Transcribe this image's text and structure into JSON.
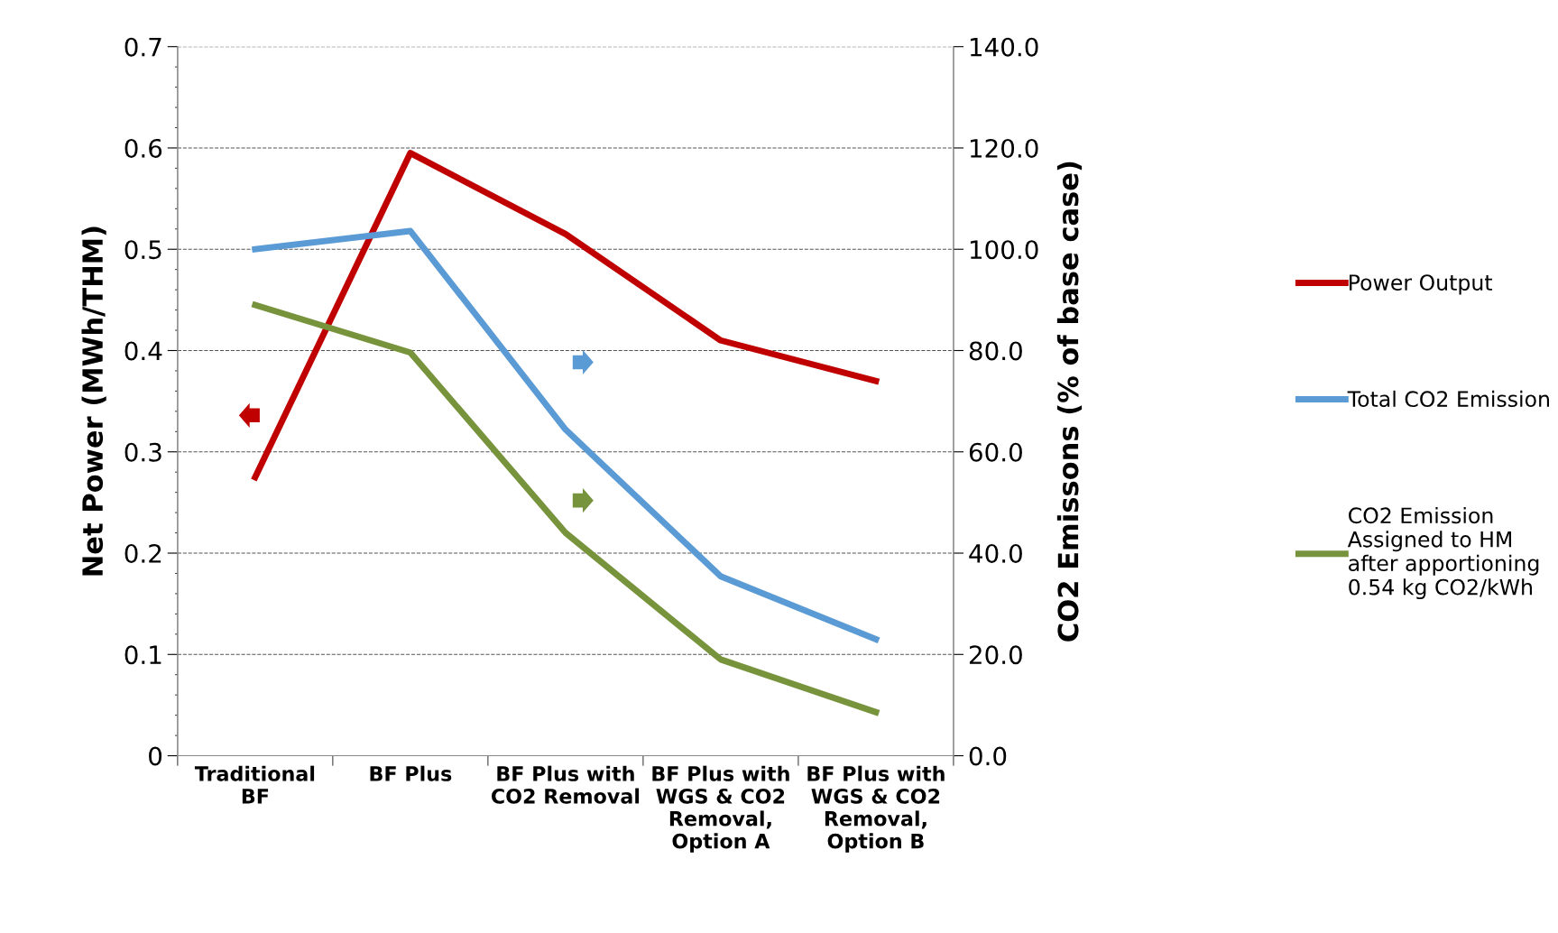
{
  "chart_data": {
    "type": "line",
    "categories": [
      "Traditional\nBF",
      "BF Plus",
      "BF Plus with\nCO2 Removal",
      "BF Plus with\nWGS & CO2\nRemoval,\nOption A",
      "BF Plus with\nWGS & CO2\nRemoval,\nOption B"
    ],
    "ylabel": "Net Power (MWh/THM)",
    "y2label": "CO2 Emissons (% of base case)",
    "ylim": [
      0,
      0.7
    ],
    "yticks": [
      0,
      0.1,
      0.2,
      0.3,
      0.4,
      0.5,
      0.6,
      0.7
    ],
    "y2lim": [
      0,
      140
    ],
    "y2ticks": [
      {
        "value": 0,
        "label": "0.0"
      },
      {
        "value": 20,
        "label": "20.0"
      },
      {
        "value": 40,
        "label": "40.0"
      },
      {
        "value": 60,
        "label": "60.0"
      },
      {
        "value": 80,
        "label": "80.0"
      },
      {
        "value": 100,
        "label": "100.0"
      },
      {
        "value": 120,
        "label": "120.0"
      },
      {
        "value": 140,
        "label": "140.0"
      }
    ],
    "grid": "y",
    "legend": "right",
    "marker": "none",
    "line_style": "solid",
    "series": [
      {
        "name": "Power Output",
        "color": "#c00000",
        "values": [
          0.275,
          0.595,
          0.515,
          0.41,
          0.37
        ]
      },
      {
        "name": "Total CO2 Emission",
        "color": "#5b9bd5",
        "axis": "y2",
        "values": [
          100,
          103.6,
          64.4,
          35.4,
          23
        ]
      },
      {
        "name": "CO2 Emission\nAssigned to HM\nafter apportioning\n0.54 kg CO2/kWh",
        "color": "#77933c",
        "axis": "y2",
        "values": [
          89,
          79.6,
          44,
          19,
          8.6
        ]
      }
    ]
  }
}
